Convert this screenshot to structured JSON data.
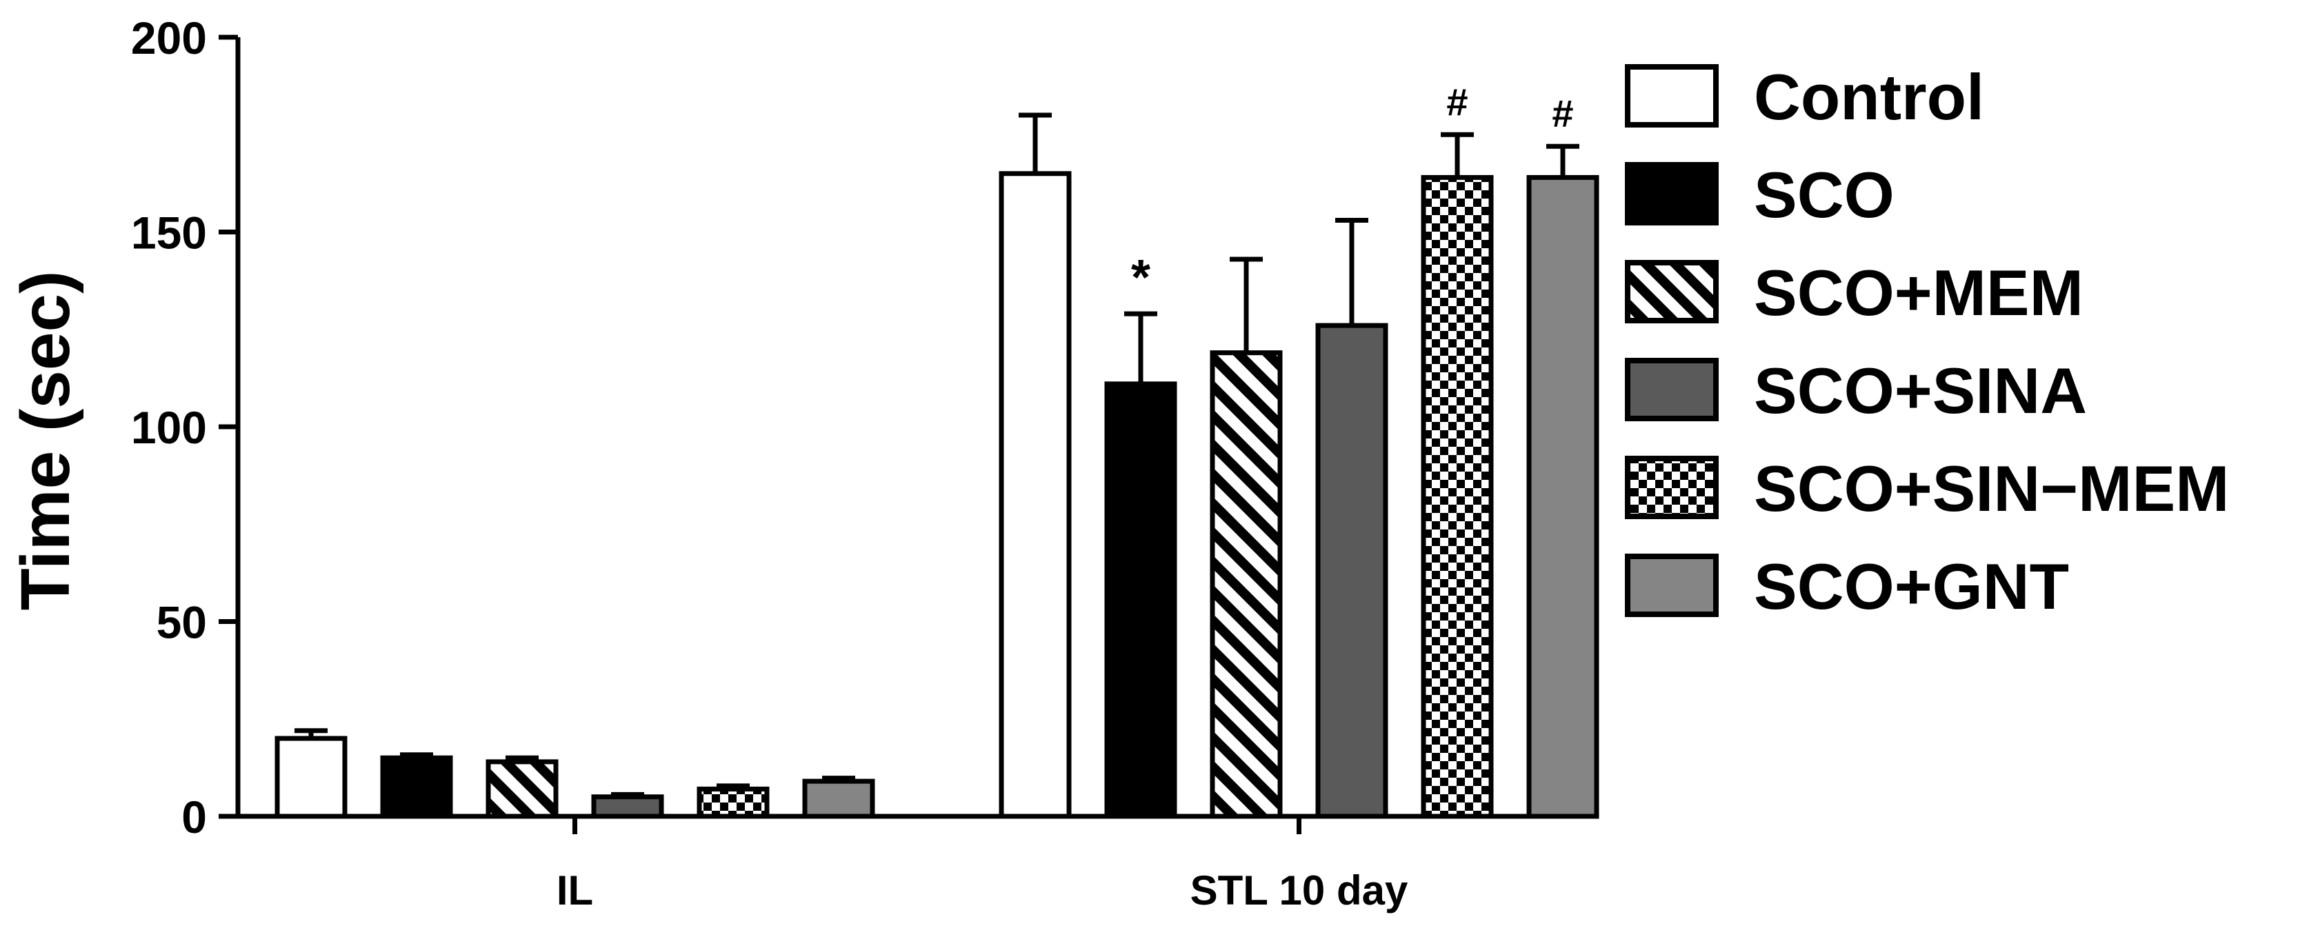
{
  "chart_data": {
    "type": "bar",
    "title": "",
    "xlabel": "",
    "ylabel": "Time (sec)",
    "ylim": [
      0,
      200
    ],
    "yticks": [
      0,
      50,
      100,
      150,
      200
    ],
    "grid": false,
    "legend_position": "right",
    "categories": [
      "IL",
      "STL 10 day"
    ],
    "series": [
      {
        "name": "Control",
        "pattern": "white",
        "values": [
          20,
          165
        ],
        "errors": [
          2,
          15
        ],
        "annotations": [
          "",
          ""
        ]
      },
      {
        "name": "SCO",
        "pattern": "black",
        "values": [
          15,
          111
        ],
        "errors": [
          0.8,
          18
        ],
        "annotations": [
          "",
          "*"
        ]
      },
      {
        "name": "SCO+MEM",
        "pattern": "hatch",
        "values": [
          14,
          119
        ],
        "errors": [
          1,
          24
        ],
        "annotations": [
          "",
          ""
        ]
      },
      {
        "name": "SCO+SINA",
        "pattern": "dark-gray",
        "values": [
          5,
          126
        ],
        "errors": [
          0.6,
          27
        ],
        "annotations": [
          "",
          ""
        ]
      },
      {
        "name": "SCO+SIN−MEM",
        "pattern": "checker",
        "values": [
          7,
          164
        ],
        "errors": [
          0.8,
          11
        ],
        "annotations": [
          "",
          "#"
        ]
      },
      {
        "name": "SCO+GNT",
        "pattern": "mid-gray",
        "values": [
          9,
          164
        ],
        "errors": [
          0.8,
          8
        ],
        "annotations": [
          "",
          "#"
        ]
      }
    ],
    "colors": {
      "dark-gray": "#5a5a5a",
      "mid-gray": "#858585",
      "black": "#000000",
      "white": "#ffffff"
    }
  }
}
